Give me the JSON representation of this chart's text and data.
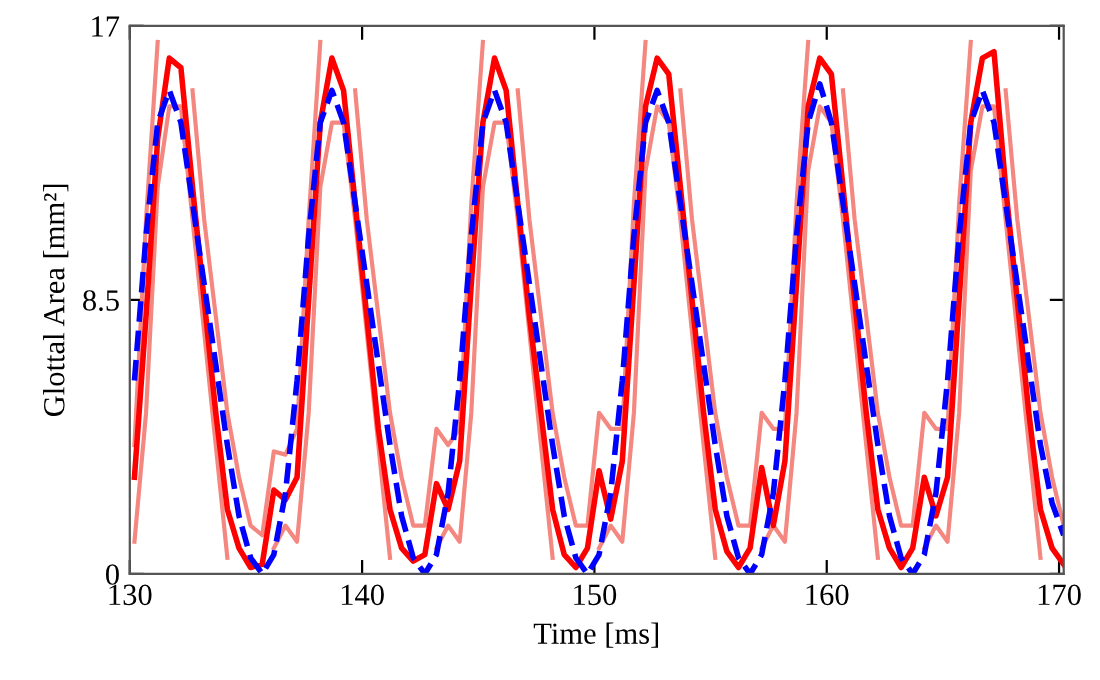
{
  "chart_data": {
    "type": "line",
    "xlabel": "Time [ms]",
    "ylabel": "Glottal Area [mm²]",
    "x": [
      130.2,
      130.7,
      131.2,
      131.7,
      132.2,
      132.7,
      133.2,
      133.7,
      134.2,
      134.7,
      135.2,
      135.7,
      136.2,
      136.7,
      137.2,
      137.7,
      138.2,
      138.7,
      139.2,
      139.7,
      140.2,
      140.7,
      141.2,
      141.7,
      142.2,
      142.7,
      143.2,
      143.7,
      144.2,
      144.7,
      145.2,
      145.7,
      146.2,
      146.7,
      147.2,
      147.7,
      148.2,
      148.7,
      149.2,
      149.7,
      150.2,
      150.7,
      151.2,
      151.7,
      152.2,
      152.7,
      153.2,
      153.7,
      154.2,
      154.7,
      155.2,
      155.7,
      156.2,
      156.7,
      157.2,
      157.7,
      158.2,
      158.7,
      159.2,
      159.7,
      160.2,
      160.7,
      161.2,
      161.7,
      162.2,
      162.7,
      163.2,
      163.7,
      164.2,
      164.7,
      165.2,
      165.7,
      166.2,
      166.7,
      167.2,
      167.7,
      168.2,
      168.7,
      169.2,
      169.7,
      170.2
    ],
    "series": [
      {
        "color": "#f4877f",
        "values": [
          4,
          11,
          16.5,
          null,
          null,
          15,
          11,
          8,
          5,
          3,
          1.5,
          1.2,
          3.8,
          3.7,
          4.5,
          11,
          16.5,
          null,
          null,
          15,
          11,
          8,
          5,
          3,
          1.5,
          1.5,
          4.5,
          4,
          4.5,
          11.5,
          16.5,
          null,
          null,
          15,
          11,
          8,
          5,
          3,
          1.5,
          1.5,
          5,
          4.5,
          4.5,
          11.5,
          16.5,
          null,
          null,
          15,
          11,
          8,
          5,
          3,
          1.5,
          1.5,
          5,
          4.5,
          4.5,
          11.5,
          16.5,
          null,
          null,
          15,
          11,
          8,
          5,
          3,
          1.5,
          1.5,
          5,
          4.5,
          4.5,
          11.5,
          16.5,
          null,
          null,
          15,
          11,
          8,
          5,
          3,
          1.5
        ]
      },
      {
        "color": "#f4877f",
        "values": [
          1,
          5,
          12,
          14.5,
          14.5,
          11,
          7.5,
          4,
          0.5,
          null,
          null,
          null,
          0.8,
          1.5,
          1,
          5,
          12,
          14,
          14,
          11,
          7.5,
          4,
          0.5,
          null,
          null,
          null,
          0.8,
          1.5,
          1,
          5,
          12,
          14,
          14,
          11,
          7.5,
          4,
          0.5,
          null,
          null,
          null,
          0.8,
          1.5,
          1,
          5,
          12.5,
          14.5,
          14,
          11,
          7.5,
          4,
          0.5,
          null,
          null,
          null,
          0.8,
          1.5,
          1,
          5,
          12.5,
          14.5,
          14,
          11,
          7.5,
          4,
          0.5,
          null,
          null,
          null,
          0.8,
          1.5,
          1,
          5,
          12.5,
          14.5,
          14.5,
          11,
          7.5,
          4,
          0.5,
          null,
          null
        ]
      },
      {
        "color": "#ff0000",
        "values": [
          3,
          8,
          13.5,
          16,
          15.7,
          12,
          8.5,
          5,
          2,
          0.8,
          0.2,
          0.3,
          2.6,
          2.3,
          3,
          8.5,
          14,
          16,
          15,
          11.5,
          8,
          4.5,
          2,
          0.8,
          0.4,
          0.6,
          2.8,
          2,
          3.5,
          9,
          14,
          16,
          15,
          11.5,
          8,
          5,
          2,
          0.6,
          0.2,
          0.8,
          3.2,
          1.7,
          3.5,
          9,
          14.5,
          16,
          15.5,
          12,
          8.5,
          5,
          2,
          0.7,
          0.2,
          0.8,
          3.3,
          1.5,
          3.5,
          9,
          14.5,
          16,
          15.5,
          12,
          8.5,
          5,
          2,
          0.8,
          0.2,
          0.8,
          3,
          1.8,
          3,
          8.5,
          14,
          16,
          16.2,
          12,
          8.5,
          5,
          2,
          0.8,
          0.3
        ]
      },
      {
        "color": "#0000ff",
        "line_style": "dashed",
        "values": [
          6,
          10.5,
          14,
          15,
          14,
          11.5,
          9,
          6.5,
          4,
          1.8,
          0.5,
          0,
          0.6,
          2.5,
          6,
          10.5,
          14,
          15,
          14,
          11.5,
          9,
          6.5,
          4,
          1.8,
          0.5,
          0,
          0.6,
          2.5,
          6,
          10.5,
          14,
          15,
          14,
          11.5,
          9,
          6.5,
          4,
          1.8,
          0.5,
          0,
          0.6,
          2.5,
          6,
          10.5,
          14,
          15,
          14,
          11.5,
          9,
          6.5,
          4,
          1.8,
          0.5,
          0,
          0.6,
          2.5,
          6,
          10.5,
          14,
          15.2,
          14,
          11.5,
          9,
          6.5,
          4,
          1.8,
          0.5,
          0,
          0.6,
          2.5,
          6,
          10.5,
          14,
          15,
          14,
          11.5,
          9,
          6.5,
          4,
          2.2,
          1.2
        ]
      }
    ],
    "xlim": [
      130,
      170.2
    ],
    "ylim": [
      0,
      17
    ],
    "xticks": [
      130,
      140,
      150,
      160,
      170
    ],
    "yticks": [
      0,
      8.5,
      17
    ],
    "grid": false,
    "legend": false,
    "line_style": "solid",
    "marker": "none"
  }
}
